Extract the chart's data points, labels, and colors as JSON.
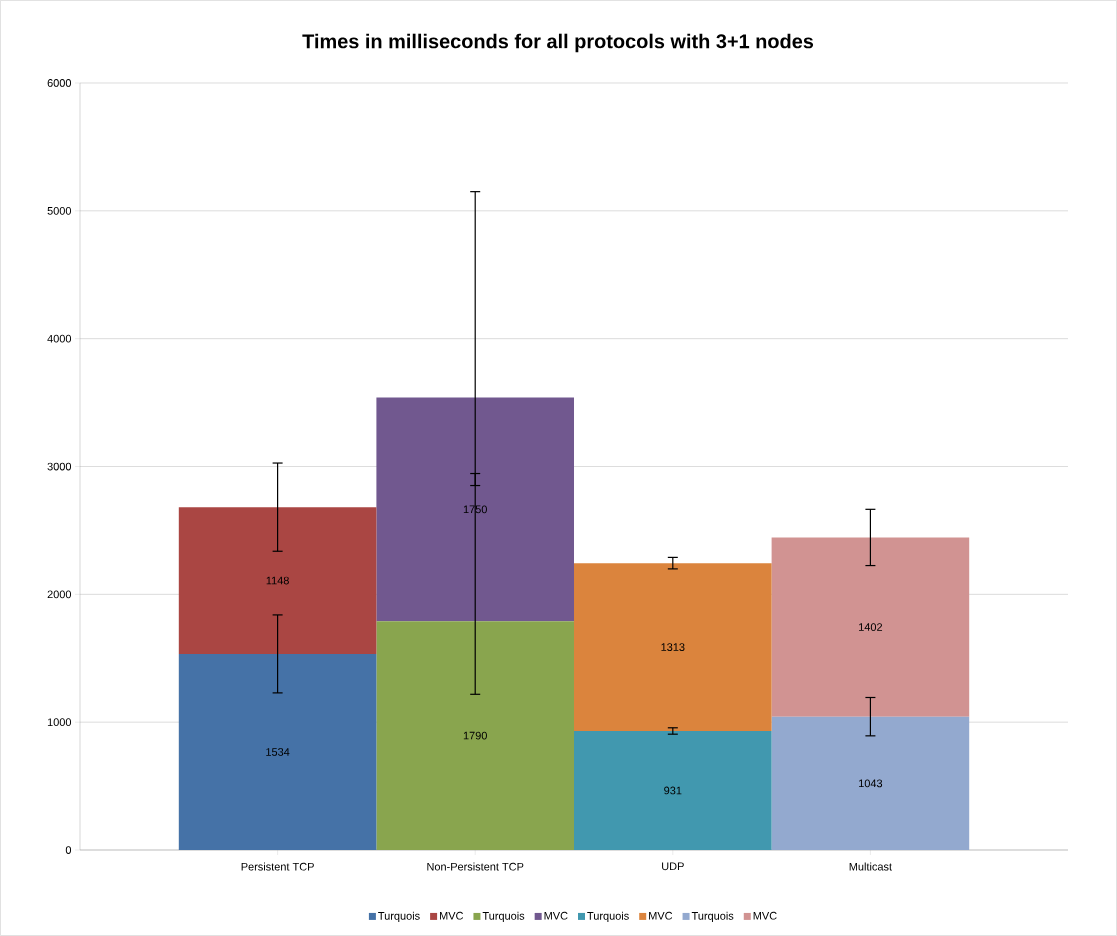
{
  "chart_data": {
    "type": "bar",
    "title": "Times in milliseconds for all protocols with 3+1 nodes",
    "categories": [
      "Persistent TCP",
      "Non-Persistent TCP",
      "UDP",
      "Multicast"
    ],
    "stacked": true,
    "ylim": [
      0,
      6000
    ],
    "yticks": [
      0,
      1000,
      2000,
      3000,
      4000,
      5000,
      6000
    ],
    "grid": "y",
    "legend": "bottom",
    "data_labels": true,
    "series": [
      {
        "name": "Turquois",
        "color": "#4572a7",
        "values": [
          1534,
          null,
          null,
          null
        ],
        "errors": [
          305,
          null,
          null,
          null
        ]
      },
      {
        "name": "MVC",
        "color": "#aa4643",
        "values": [
          1148,
          null,
          null,
          null
        ],
        "errors": [
          345,
          null,
          null,
          null
        ]
      },
      {
        "name": "Turquois",
        "color": "#89a54e",
        "values": [
          null,
          1790,
          null,
          null
        ],
        "errors": [
          null,
          [
            1218,
            2945
          ],
          null,
          null
        ]
      },
      {
        "name": "MVC",
        "color": "#71588f",
        "values": [
          null,
          1750,
          null,
          null
        ],
        "errors": [
          null,
          [
            2851,
            5150
          ],
          null,
          null
        ]
      },
      {
        "name": "Turquois",
        "color": "#4198af",
        "values": [
          null,
          null,
          931,
          null
        ],
        "errors": [
          null,
          null,
          25,
          null
        ]
      },
      {
        "name": "MVC",
        "color": "#db843d",
        "values": [
          null,
          null,
          1313,
          null
        ],
        "errors": [
          null,
          null,
          45,
          null
        ]
      },
      {
        "name": "Turquois",
        "color": "#93a9cf",
        "values": [
          null,
          null,
          null,
          1043
        ],
        "errors": [
          null,
          null,
          null,
          150
        ]
      },
      {
        "name": "MVC",
        "color": "#d19392",
        "values": [
          null,
          null,
          null,
          1402
        ],
        "errors": [
          null,
          null,
          null,
          220
        ]
      }
    ]
  }
}
